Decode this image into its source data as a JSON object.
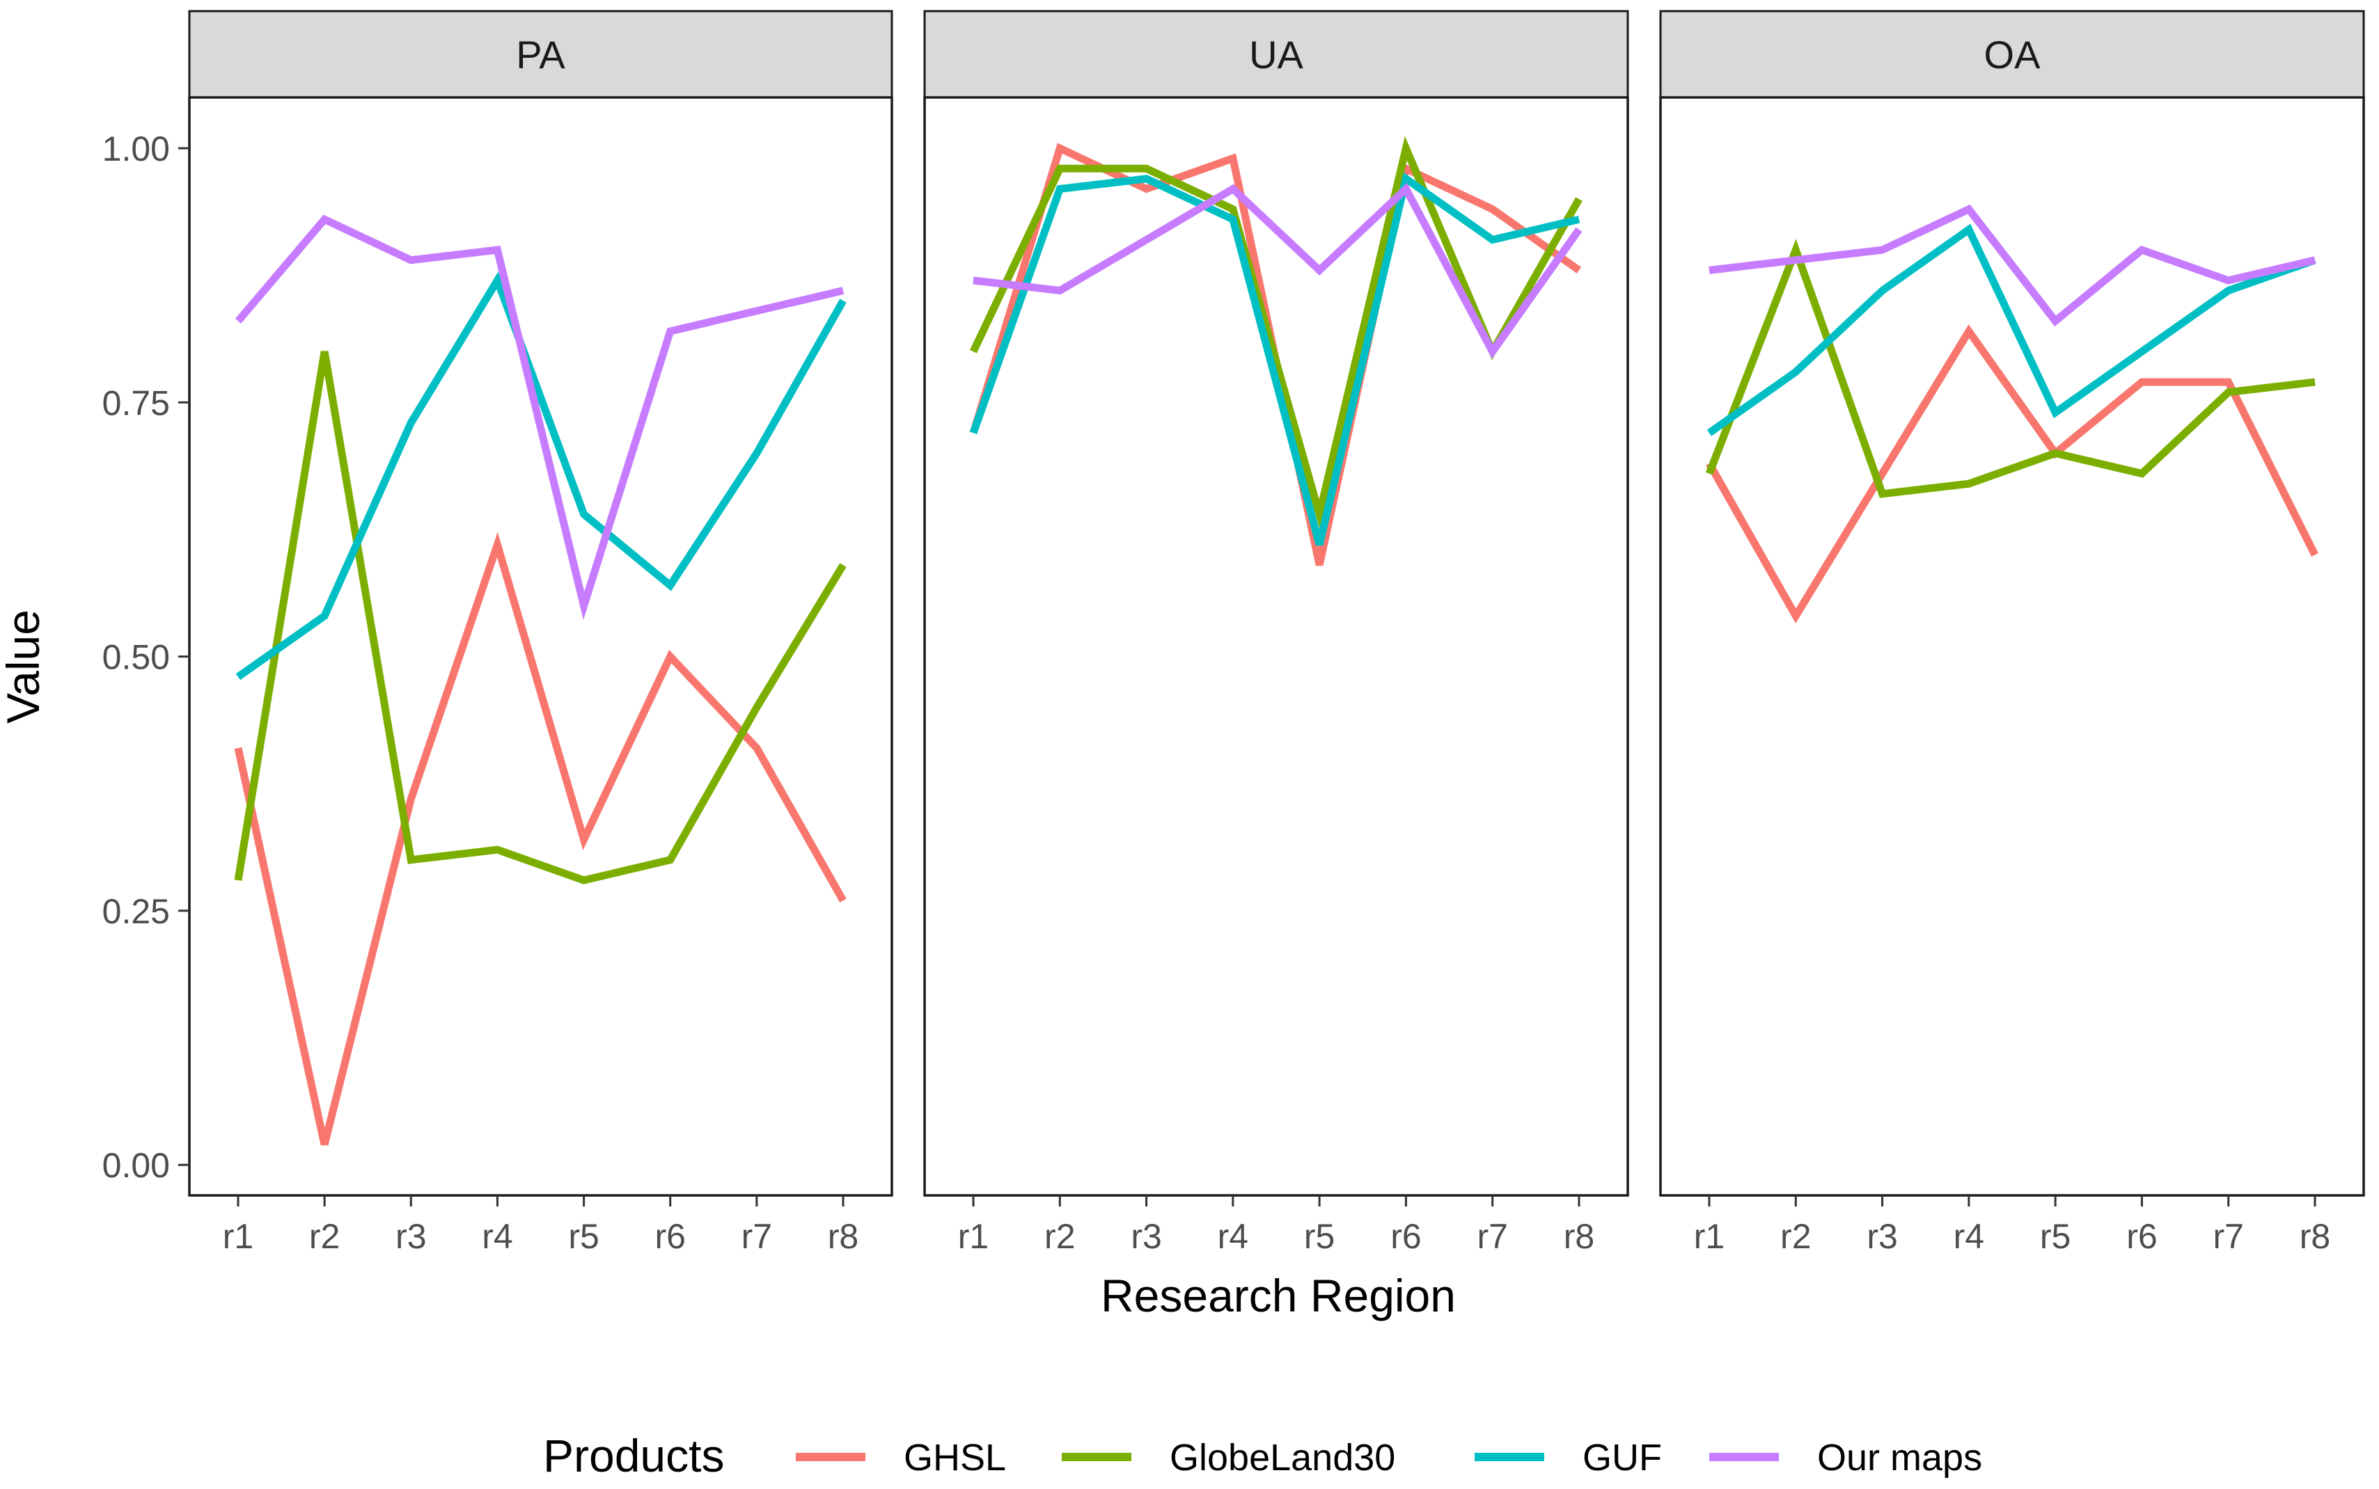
{
  "chart_data": {
    "type": "line",
    "facets": [
      "PA",
      "UA",
      "OA"
    ],
    "categories": [
      "r1",
      "r2",
      "r3",
      "r4",
      "r5",
      "r6",
      "r7",
      "r8"
    ],
    "xlabel": "Research Region",
    "ylabel": "Value",
    "ylim": [
      -0.03,
      1.05
    ],
    "yticks": [
      0.0,
      0.25,
      0.5,
      0.75,
      1.0
    ],
    "ytick_labels": [
      "0.00",
      "0.25",
      "0.50",
      "0.75",
      "1.00"
    ],
    "legend": {
      "title": "Products",
      "position": "bottom"
    },
    "series": [
      {
        "name": "GHSL",
        "color": "#F8766D",
        "values": {
          "PA": [
            0.41,
            0.02,
            0.36,
            0.61,
            0.32,
            0.5,
            0.41,
            0.26
          ],
          "UA": [
            0.72,
            1.0,
            0.96,
            0.99,
            0.59,
            0.98,
            0.94,
            0.88
          ],
          "OA": [
            0.69,
            0.54,
            0.68,
            0.82,
            0.7,
            0.77,
            0.77,
            0.6
          ]
        }
      },
      {
        "name": "GlobeLand30",
        "color": "#7CAE00",
        "values": {
          "PA": [
            0.28,
            0.8,
            0.3,
            0.31,
            0.28,
            0.3,
            0.45,
            0.59
          ],
          "UA": [
            0.8,
            0.98,
            0.98,
            0.94,
            0.64,
            1.0,
            0.8,
            0.95
          ],
          "OA": [
            0.68,
            0.9,
            0.66,
            0.67,
            0.7,
            0.68,
            0.76,
            0.77
          ]
        }
      },
      {
        "name": "GUF",
        "color": "#00BFC4",
        "values": {
          "PA": [
            0.48,
            0.54,
            0.73,
            0.87,
            0.64,
            0.57,
            0.7,
            0.85
          ],
          "UA": [
            0.72,
            0.96,
            0.97,
            0.93,
            0.61,
            0.97,
            0.91,
            0.93
          ],
          "OA": [
            0.72,
            0.78,
            0.86,
            0.92,
            0.74,
            0.8,
            0.86,
            0.89
          ]
        }
      },
      {
        "name": "Our maps",
        "color": "#C77CFF",
        "values": {
          "PA": [
            0.83,
            0.93,
            0.89,
            0.9,
            0.55,
            0.82,
            0.84,
            0.86
          ],
          "UA": [
            0.87,
            0.86,
            0.91,
            0.96,
            0.88,
            0.96,
            0.8,
            0.92
          ],
          "OA": [
            0.88,
            0.89,
            0.9,
            0.94,
            0.83,
            0.9,
            0.87,
            0.89
          ]
        }
      }
    ]
  }
}
